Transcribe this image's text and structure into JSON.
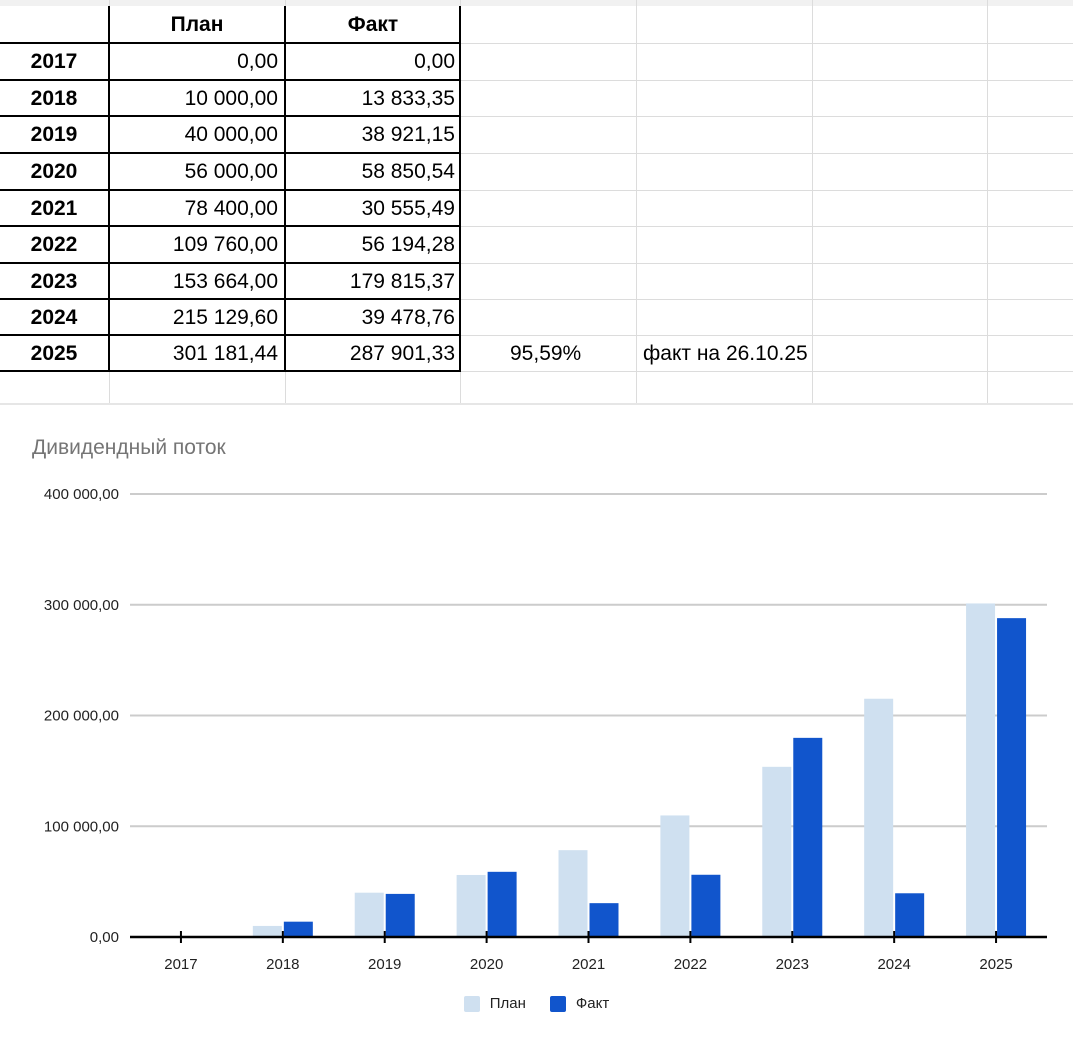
{
  "table": {
    "headers": [
      "",
      "План",
      "Факт"
    ],
    "rows": [
      {
        "year": "2017",
        "plan": "0,00",
        "fact": "0,00"
      },
      {
        "year": "2018",
        "plan": "10 000,00",
        "fact": "13 833,35"
      },
      {
        "year": "2019",
        "plan": "40 000,00",
        "fact": "38 921,15"
      },
      {
        "year": "2020",
        "plan": "56 000,00",
        "fact": "58 850,54"
      },
      {
        "year": "2021",
        "plan": "78 400,00",
        "fact": "30 555,49"
      },
      {
        "year": "2022",
        "plan": "109 760,00",
        "fact": "56 194,28"
      },
      {
        "year": "2023",
        "plan": "153 664,00",
        "fact": "179 815,37"
      },
      {
        "year": "2024",
        "plan": "215 129,60",
        "fact": "39 478,76"
      },
      {
        "year": "2025",
        "plan": "301 181,44",
        "fact": "287 901,33"
      }
    ],
    "extra_percent": "95,59%",
    "extra_note": "факт на 26.10.25"
  },
  "chart_data": {
    "type": "bar",
    "title": "Дивидендный поток",
    "categories": [
      "2017",
      "2018",
      "2019",
      "2020",
      "2021",
      "2022",
      "2023",
      "2024",
      "2025"
    ],
    "series": [
      {
        "name": "План",
        "color": "#cfe0f0",
        "values": [
          0,
          10000,
          40000,
          56000,
          78400,
          109760,
          153664,
          215129.6,
          301181.44
        ]
      },
      {
        "name": "Факт",
        "color": "#1155cc",
        "values": [
          0,
          13833.35,
          38921.15,
          58850.54,
          30555.49,
          56194.28,
          179815.37,
          39478.76,
          287901.33
        ]
      }
    ],
    "ylim": [
      0,
      400000
    ],
    "yticks": [
      0,
      100000,
      200000,
      300000,
      400000
    ],
    "ytick_labels": [
      "0,00",
      "100 000,00",
      "200 000,00",
      "300 000,00",
      "400 000,00"
    ],
    "grid": true,
    "legend": "bottom",
    "xlabel": "",
    "ylabel": ""
  }
}
